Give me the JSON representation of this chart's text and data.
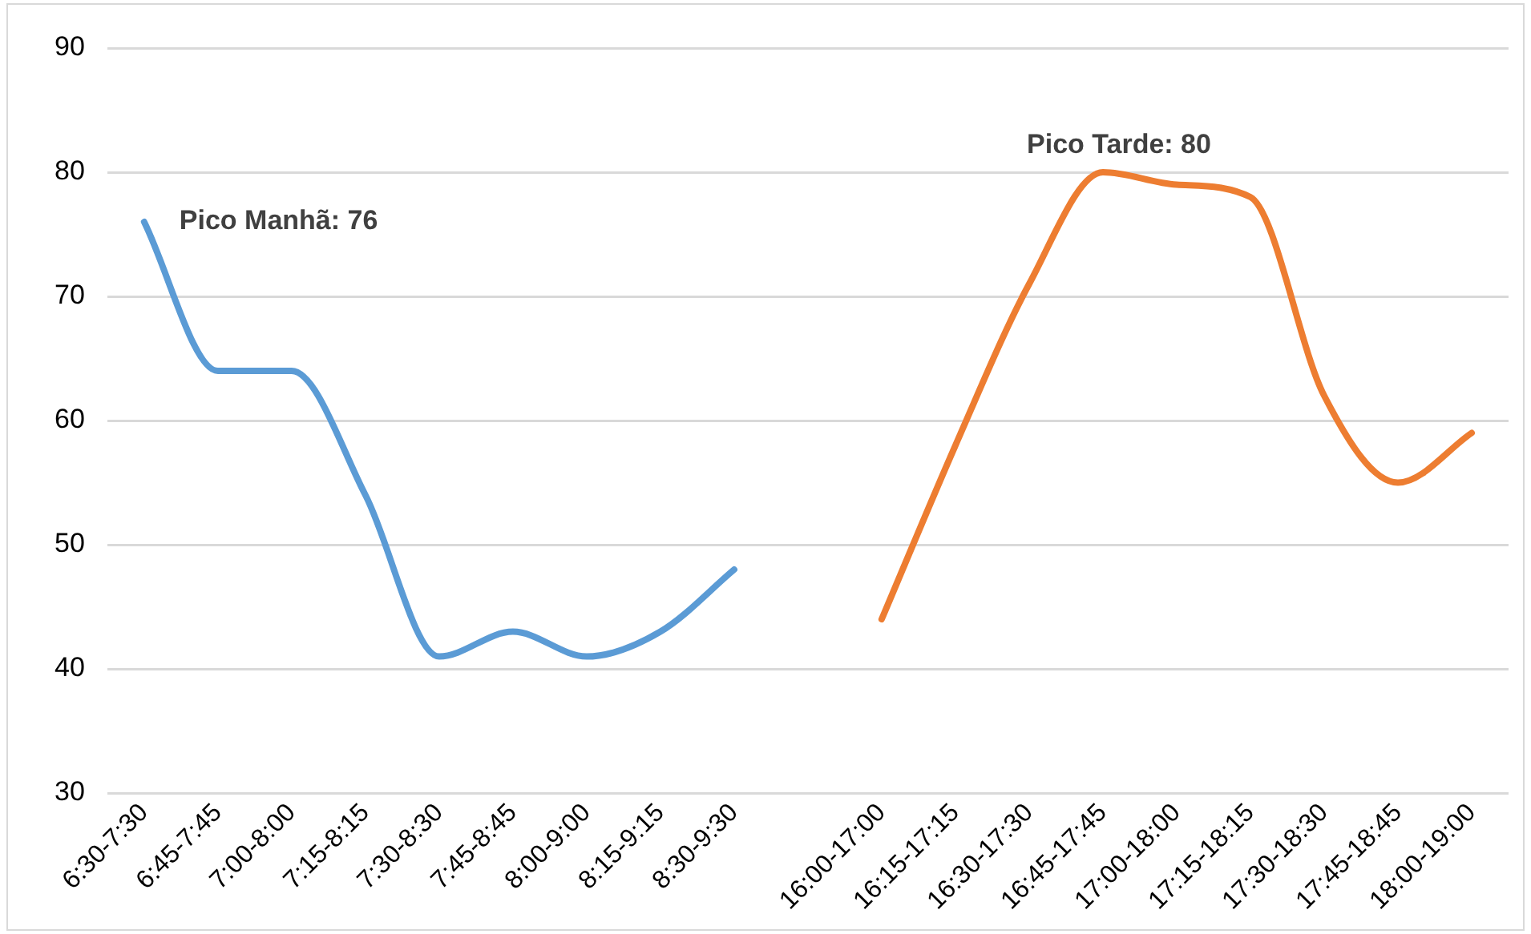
{
  "chart_data": {
    "type": "line",
    "categories": [
      "6:30-7:30",
      "6:45-7:45",
      "7:00-8:00",
      "7:15-8:15",
      "7:30-8:30",
      "7:45-8:45",
      "8:00-9:00",
      "8:15-9:15",
      "8:30-9:30",
      null,
      "16:00-17:00",
      "16:15-17:15",
      "16:30-17:30",
      "16:45-17:45",
      "17:00-18:00",
      "17:15-18:15",
      "17:30-18:30",
      "17:45-18:45",
      "18:00-19:00"
    ],
    "series": [
      {
        "color": "#5b9bd5",
        "values": [
          76,
          64,
          64,
          54,
          41,
          43,
          41,
          43,
          48,
          null,
          null,
          null,
          null,
          null,
          null,
          null,
          null,
          null,
          null
        ]
      },
      {
        "color": "#ed7d31",
        "values": [
          null,
          null,
          null,
          null,
          null,
          null,
          null,
          null,
          null,
          null,
          44,
          58,
          71,
          80,
          79,
          78,
          62,
          55,
          59
        ]
      }
    ],
    "ylim": [
      30,
      90
    ],
    "yticks": [
      30,
      40,
      50,
      60,
      70,
      80,
      90
    ],
    "grid": "y",
    "legend": false,
    "marker": "none",
    "line_style": "solid",
    "annotations": [
      {
        "text": "Pico Manhã: 76",
        "x": "6:30-7:30",
        "y": 76
      },
      {
        "text": "Pico Tarde: 80",
        "x": "16:45-17:45",
        "y": 80
      }
    ]
  }
}
